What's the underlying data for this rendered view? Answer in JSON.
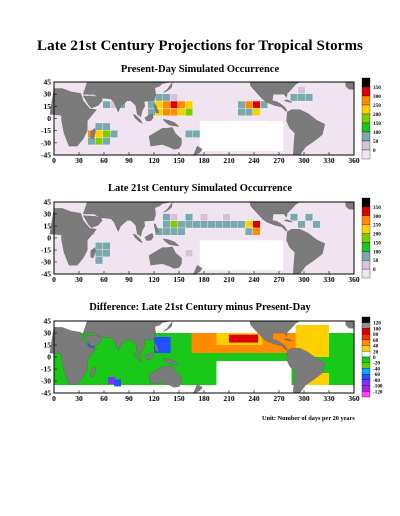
{
  "title": "Late 21st Century Projections for Tropical Storms",
  "unit_note": "Unit:  Number of days per 20 years",
  "land_color": "#7b7b7b",
  "ocean_color": "#ffffff",
  "axes": {
    "x_ticks": [
      "0",
      "30",
      "60",
      "90",
      "120",
      "150",
      "180",
      "210",
      "240",
      "270",
      "300",
      "330",
      "360"
    ],
    "y_ticks": [
      "45",
      "30",
      "15",
      "0",
      "-15",
      "-30",
      "-45"
    ],
    "xlim": [
      0,
      360
    ],
    "ylim": [
      -45,
      45
    ]
  },
  "panels": [
    {
      "title": "Present-Day Simulated Occurrence",
      "legend": {
        "labels": [
          "350",
          "300",
          "250",
          "200",
          "150",
          "100",
          "50",
          "0"
        ],
        "colors": [
          "#000000",
          "#dd0000",
          "#ff8c00",
          "#ffd000",
          "#7ccc00",
          "#19c819",
          "#7aa8ad",
          "#d4c3d7",
          "#f1e4f1"
        ]
      },
      "cells": [
        {
          "lon": 117,
          "lat": 26,
          "v": "#d4c3d7"
        },
        {
          "lon": 126,
          "lat": 26,
          "v": "#7aa8ad"
        },
        {
          "lon": 135,
          "lat": 26,
          "v": "#7aa8ad"
        },
        {
          "lon": 144,
          "lat": 26,
          "v": "#d4c3d7"
        },
        {
          "lon": 117,
          "lat": 17,
          "v": "#7aa8ad"
        },
        {
          "lon": 126,
          "lat": 17,
          "v": "#ffd000"
        },
        {
          "lon": 135,
          "lat": 17,
          "v": "#ff8c00"
        },
        {
          "lon": 144,
          "lat": 17,
          "v": "#dd0000"
        },
        {
          "lon": 153,
          "lat": 17,
          "v": "#ff8c00"
        },
        {
          "lon": 162,
          "lat": 17,
          "v": "#ffd000"
        },
        {
          "lon": 117,
          "lat": 8,
          "v": "#7aa8ad"
        },
        {
          "lon": 126,
          "lat": 8,
          "v": "#ffd000"
        },
        {
          "lon": 135,
          "lat": 8,
          "v": "#ff8c00"
        },
        {
          "lon": 144,
          "lat": 8,
          "v": "#ff8c00"
        },
        {
          "lon": 153,
          "lat": 8,
          "v": "#ffd000"
        },
        {
          "lon": 162,
          "lat": 8,
          "v": "#7ccc00"
        },
        {
          "lon": 45,
          "lat": 26,
          "v": "#d4c3d7"
        },
        {
          "lon": 54,
          "lat": 26,
          "v": "#7aa8ad"
        },
        {
          "lon": 63,
          "lat": 17,
          "v": "#7aa8ad"
        },
        {
          "lon": 81,
          "lat": 17,
          "v": "#7aa8ad"
        },
        {
          "lon": 72,
          "lat": 17,
          "v": "#d4c3d7"
        },
        {
          "lon": 225,
          "lat": 17,
          "v": "#7aa8ad"
        },
        {
          "lon": 234,
          "lat": 17,
          "v": "#ff8c00"
        },
        {
          "lon": 243,
          "lat": 17,
          "v": "#dd0000"
        },
        {
          "lon": 252,
          "lat": 17,
          "v": "#7aa8ad"
        },
        {
          "lon": 225,
          "lat": 8,
          "v": "#7aa8ad"
        },
        {
          "lon": 234,
          "lat": 8,
          "v": "#7aa8ad"
        },
        {
          "lon": 243,
          "lat": 8,
          "v": "#ffd000"
        },
        {
          "lon": 288,
          "lat": 26,
          "v": "#7aa8ad"
        },
        {
          "lon": 297,
          "lat": 26,
          "v": "#7aa8ad"
        },
        {
          "lon": 306,
          "lat": 26,
          "v": "#7aa8ad"
        },
        {
          "lon": 297,
          "lat": 35,
          "v": "#d4c3d7"
        },
        {
          "lon": 54,
          "lat": -10,
          "v": "#7aa8ad"
        },
        {
          "lon": 63,
          "lat": -10,
          "v": "#7aa8ad"
        },
        {
          "lon": 45,
          "lat": -19,
          "v": "#ff8c00"
        },
        {
          "lon": 54,
          "lat": -19,
          "v": "#ffd000"
        },
        {
          "lon": 63,
          "lat": -19,
          "v": "#7ccc00"
        },
        {
          "lon": 72,
          "lat": -19,
          "v": "#7aa8ad"
        },
        {
          "lon": 45,
          "lat": -28,
          "v": "#7aa8ad"
        },
        {
          "lon": 54,
          "lat": -28,
          "v": "#7ccc00"
        },
        {
          "lon": 63,
          "lat": -28,
          "v": "#7aa8ad"
        },
        {
          "lon": 162,
          "lat": -19,
          "v": "#7aa8ad"
        },
        {
          "lon": 171,
          "lat": -19,
          "v": "#7aa8ad"
        },
        {
          "lon": 135,
          "lat": -19,
          "v": "#d4c3d7"
        }
      ]
    },
    {
      "title": "Late 21st Century Simulated Occurrence",
      "legend": {
        "labels": [
          "350",
          "300",
          "250",
          "200",
          "150",
          "100",
          "50",
          "0"
        ],
        "colors": [
          "#000000",
          "#dd0000",
          "#ff8c00",
          "#ffd000",
          "#7ccc00",
          "#19c819",
          "#7aa8ad",
          "#d4c3d7",
          "#f1e4f1"
        ]
      },
      "cells": [
        {
          "lon": 135,
          "lat": 26,
          "v": "#7aa8ad"
        },
        {
          "lon": 144,
          "lat": 26,
          "v": "#d4c3d7"
        },
        {
          "lon": 135,
          "lat": 17,
          "v": "#7aa8ad"
        },
        {
          "lon": 144,
          "lat": 17,
          "v": "#7ccc00"
        },
        {
          "lon": 153,
          "lat": 17,
          "v": "#7aa8ad"
        },
        {
          "lon": 162,
          "lat": 17,
          "v": "#7aa8ad"
        },
        {
          "lon": 171,
          "lat": 17,
          "v": "#7aa8ad"
        },
        {
          "lon": 180,
          "lat": 17,
          "v": "#7aa8ad"
        },
        {
          "lon": 189,
          "lat": 17,
          "v": "#7aa8ad"
        },
        {
          "lon": 198,
          "lat": 17,
          "v": "#7aa8ad"
        },
        {
          "lon": 207,
          "lat": 17,
          "v": "#7aa8ad"
        },
        {
          "lon": 216,
          "lat": 17,
          "v": "#7aa8ad"
        },
        {
          "lon": 225,
          "lat": 17,
          "v": "#7aa8ad"
        },
        {
          "lon": 234,
          "lat": 17,
          "v": "#ffd000"
        },
        {
          "lon": 243,
          "lat": 17,
          "v": "#dd0000"
        },
        {
          "lon": 126,
          "lat": 8,
          "v": "#7aa8ad"
        },
        {
          "lon": 135,
          "lat": 8,
          "v": "#7aa8ad"
        },
        {
          "lon": 144,
          "lat": 8,
          "v": "#7aa8ad"
        },
        {
          "lon": 153,
          "lat": 8,
          "v": "#7aa8ad"
        },
        {
          "lon": 234,
          "lat": 8,
          "v": "#7aa8ad"
        },
        {
          "lon": 243,
          "lat": 8,
          "v": "#ff8c00"
        },
        {
          "lon": 162,
          "lat": 26,
          "v": "#7aa8ad"
        },
        {
          "lon": 180,
          "lat": 26,
          "v": "#d4c3d7"
        },
        {
          "lon": 207,
          "lat": 26,
          "v": "#d4c3d7"
        },
        {
          "lon": 288,
          "lat": 26,
          "v": "#7aa8ad"
        },
        {
          "lon": 297,
          "lat": 17,
          "v": "#7aa8ad"
        },
        {
          "lon": 306,
          "lat": 26,
          "v": "#7aa8ad"
        },
        {
          "lon": 315,
          "lat": 17,
          "v": "#7aa8ad"
        },
        {
          "lon": 54,
          "lat": -10,
          "v": "#7aa8ad"
        },
        {
          "lon": 63,
          "lat": -10,
          "v": "#7aa8ad"
        },
        {
          "lon": 54,
          "lat": -19,
          "v": "#7aa8ad"
        },
        {
          "lon": 63,
          "lat": -19,
          "v": "#7aa8ad"
        },
        {
          "lon": 54,
          "lat": -28,
          "v": "#7aa8ad"
        },
        {
          "lon": 45,
          "lat": 8,
          "v": "#d4c3d7"
        },
        {
          "lon": 162,
          "lat": -19,
          "v": "#d4c3d7"
        }
      ]
    },
    {
      "title": "Difference:  Late 21st Century minus Present-Day",
      "legend": {
        "labels": [
          "120",
          "100",
          "80",
          "60",
          "40",
          "20",
          "0",
          "-20",
          "-40",
          "-60",
          "-80",
          "-100",
          "-120"
        ],
        "colors": [
          "#000000",
          "#909090",
          "#dd0000",
          "#ff3000",
          "#ff8c00",
          "#ffd000",
          "#ffffff",
          "#19c819",
          "#5fcf00",
          "#00aaff",
          "#2050ff",
          "#8030ff",
          "#b020e0",
          "#ff40ff"
        ]
      },
      "cells": []
    }
  ]
}
